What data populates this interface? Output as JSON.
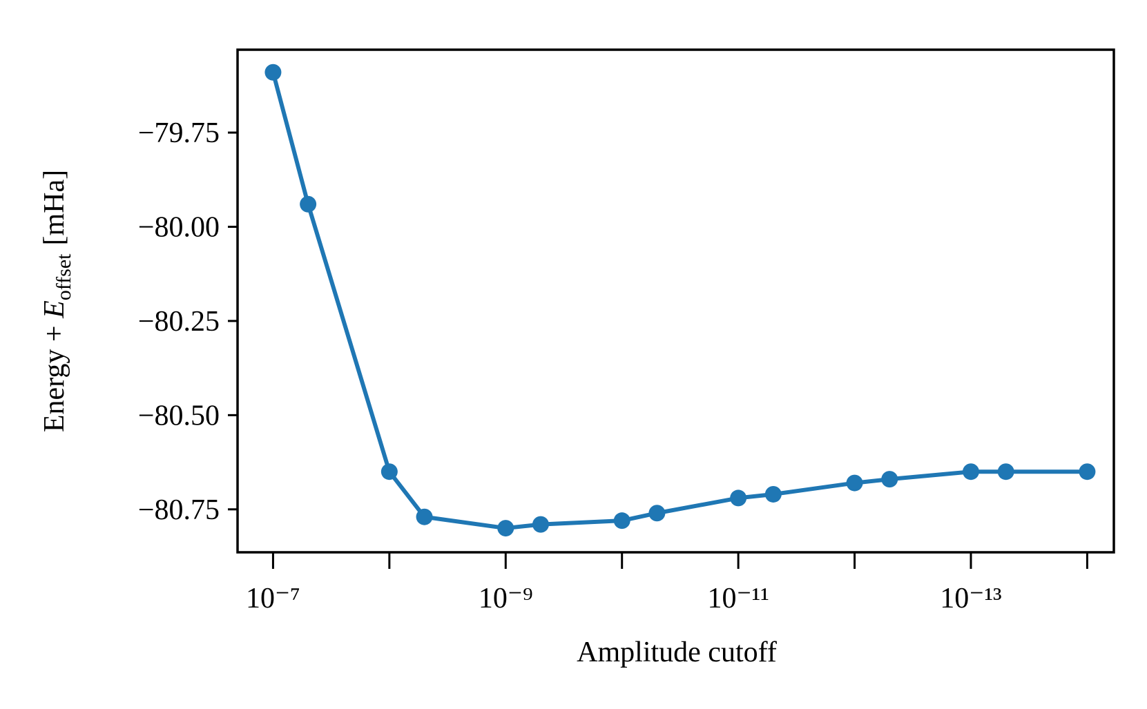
{
  "chart_data": {
    "type": "line",
    "x_label": "Amplitude cutoff",
    "y_label": {
      "prefix": "Energy + ",
      "symbol": "E",
      "subscript": "offset",
      "unit": "[mHa]"
    },
    "x_scale": "log",
    "x": [
      1e-07,
      5e-08,
      1e-08,
      5e-09,
      1e-09,
      5e-10,
      1e-10,
      5e-11,
      1e-11,
      5e-12,
      1e-12,
      5e-13,
      1e-13,
      5e-14,
      1e-14
    ],
    "series": [
      {
        "name": "Energy",
        "color": "#1f77b4",
        "values": [
          -79.59,
          -79.94,
          -80.65,
          -80.77,
          -80.8,
          -80.79,
          -80.78,
          -80.76,
          -80.72,
          -80.71,
          -80.68,
          -80.67,
          -80.65,
          -80.65,
          -80.65
        ]
      }
    ],
    "xlim": [
      2.02e-07,
      5.9e-15
    ],
    "ylim": [
      -79.53,
      -80.864
    ],
    "xticks": [
      {
        "value": 1e-07,
        "label": "10⁻⁷"
      },
      {
        "value": 1e-09,
        "label": "10⁻⁹"
      },
      {
        "value": 1e-11,
        "label": "10⁻¹¹"
      },
      {
        "value": 1e-13,
        "label": "10⁻¹³"
      }
    ],
    "xticks_unlabeled": [
      1e-08,
      1e-10,
      1e-12,
      1e-14
    ],
    "yticks": [
      {
        "value": -79.75,
        "label": "−79.75"
      },
      {
        "value": -80,
        "label": "−80.00"
      },
      {
        "value": -80.25,
        "label": "−80.25"
      },
      {
        "value": -80.5,
        "label": "−80.50"
      },
      {
        "value": -80.75,
        "label": "−80.75"
      }
    ],
    "grid": false
  }
}
